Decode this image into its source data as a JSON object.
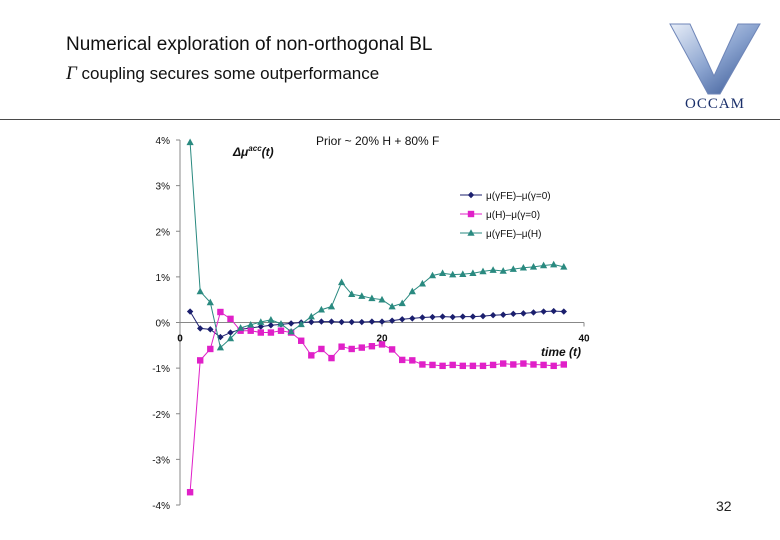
{
  "slide": {
    "title": "Numerical exploration of non-orthogonal BL",
    "subtitle_symbol": "Γ",
    "subtitle_text": " coupling secures some outperformance",
    "logo_text": "OCCAM",
    "page_number": "32"
  },
  "chart_data": {
    "type": "line",
    "title": "",
    "annotation": "Prior ~ 20% H + 80% F",
    "ylabel_main": "Δμ",
    "ylabel_sup": "acc",
    "ylabel_tail": "(t)",
    "xlabel": "time (t)",
    "xlim": [
      0,
      40
    ],
    "ylim": [
      -0.04,
      0.04
    ],
    "x_ticks": [
      "0",
      "20",
      "40"
    ],
    "y_ticks": [
      "4%",
      "3%",
      "2%",
      "1%",
      "0%",
      "-1%",
      "-2%",
      "-3%",
      "-4%"
    ],
    "legend_position": "right",
    "x": [
      1,
      2,
      3,
      4,
      5,
      6,
      7,
      8,
      9,
      10,
      11,
      12,
      13,
      14,
      15,
      16,
      17,
      18,
      19,
      20,
      21,
      22,
      23,
      24,
      25,
      26,
      27,
      28,
      29,
      30,
      31,
      32,
      33,
      34,
      35,
      36,
      37,
      38
    ],
    "series": [
      {
        "name": "μ(γFE)–μ(γ=0)",
        "color": "#1b1f6e",
        "marker": "diamond",
        "values": [
          0.0024,
          -0.0013,
          -0.0015,
          -0.0032,
          -0.0022,
          -0.0015,
          -0.0012,
          -0.0009,
          -0.0006,
          -0.0004,
          -0.0002,
          0.0,
          0.0001,
          0.0002,
          0.0002,
          0.0001,
          0.0001,
          0.0001,
          0.0002,
          0.0002,
          0.0004,
          0.0007,
          0.0009,
          0.0011,
          0.0012,
          0.0013,
          0.0012,
          0.0013,
          0.0013,
          0.0014,
          0.0016,
          0.0017,
          0.0019,
          0.002,
          0.0022,
          0.0024,
          0.0025,
          0.0024
        ]
      },
      {
        "name": "μ(H)–μ(γ=0)",
        "color": "#e020c8",
        "marker": "square",
        "values": [
          -0.0372,
          -0.0083,
          -0.0058,
          0.0023,
          0.0008,
          -0.0018,
          -0.0018,
          -0.0022,
          -0.0022,
          -0.0018,
          -0.0022,
          -0.004,
          -0.0072,
          -0.0058,
          -0.0078,
          -0.0053,
          -0.0058,
          -0.0055,
          -0.0052,
          -0.0048,
          -0.0059,
          -0.0082,
          -0.0083,
          -0.0092,
          -0.0093,
          -0.0095,
          -0.0093,
          -0.0095,
          -0.0095,
          -0.0095,
          -0.0093,
          -0.009,
          -0.0092,
          -0.009,
          -0.0092,
          -0.0093,
          -0.0095,
          -0.0092
        ]
      },
      {
        "name": "μ(γFE)–μ(H)",
        "color": "#2a8a80",
        "marker": "triangle",
        "values": [
          0.0395,
          0.0068,
          0.0044,
          -0.0055,
          -0.0035,
          -0.0012,
          -0.0005,
          0.0001,
          0.0006,
          -0.0003,
          -0.002,
          -0.0004,
          0.0013,
          0.0028,
          0.0035,
          0.0088,
          0.0062,
          0.0058,
          0.0053,
          0.005,
          0.0035,
          0.0042,
          0.0068,
          0.0085,
          0.0103,
          0.0108,
          0.0105,
          0.0106,
          0.0108,
          0.0112,
          0.0115,
          0.0113,
          0.0117,
          0.012,
          0.0122,
          0.0125,
          0.0127,
          0.0122
        ]
      }
    ]
  }
}
